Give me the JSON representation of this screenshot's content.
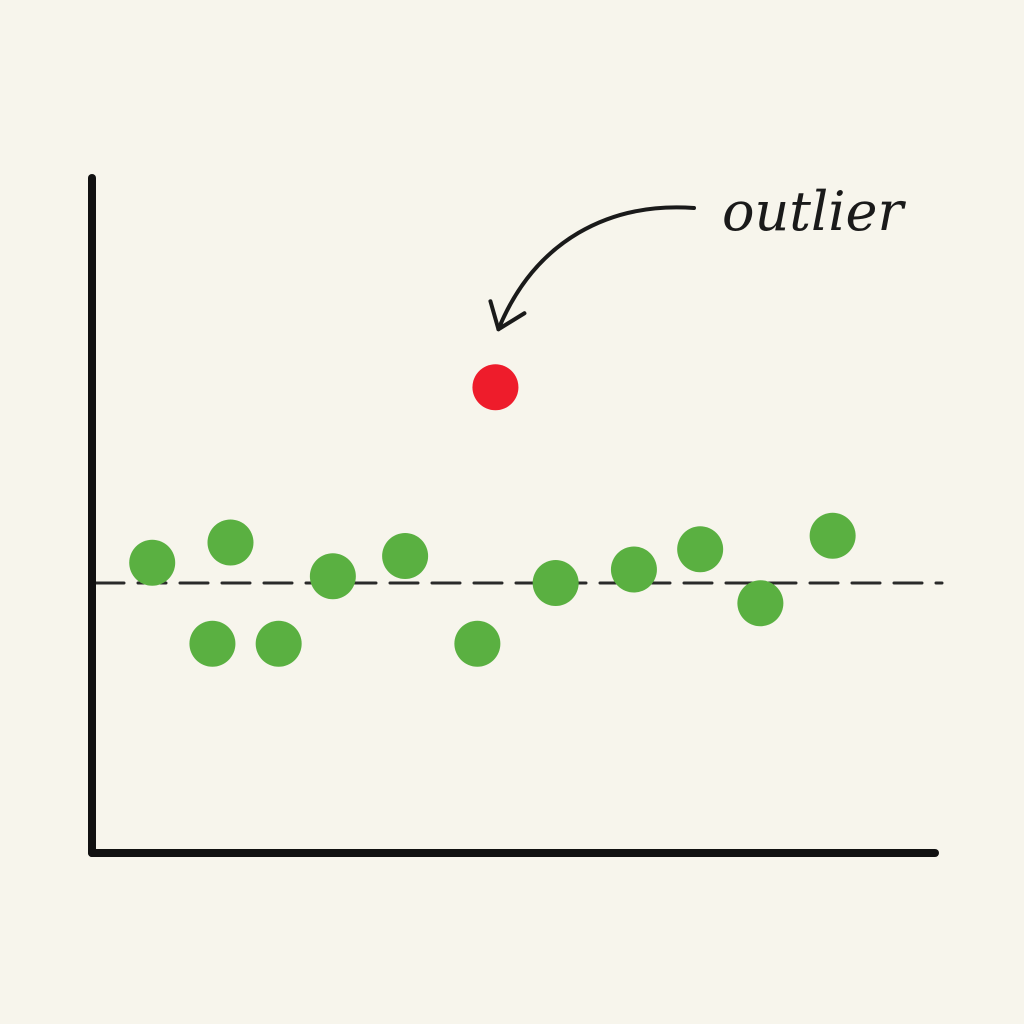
{
  "chart_data": {
    "type": "scatter",
    "title": "",
    "xlabel": "",
    "ylabel": "",
    "xlim": [
      0,
      14
    ],
    "ylim": [
      0,
      10
    ],
    "grid": false,
    "reference_line": {
      "y": 4,
      "style": "dashed"
    },
    "series": [
      {
        "role": "normal",
        "color": "#5ab041",
        "points": [
          {
            "x": 1.0,
            "y": 4.3
          },
          {
            "x": 2.0,
            "y": 3.1
          },
          {
            "x": 2.3,
            "y": 4.6
          },
          {
            "x": 3.1,
            "y": 3.1
          },
          {
            "x": 4.0,
            "y": 4.1
          },
          {
            "x": 5.2,
            "y": 4.4
          },
          {
            "x": 6.4,
            "y": 3.1
          },
          {
            "x": 7.7,
            "y": 4.0
          },
          {
            "x": 9.0,
            "y": 4.2
          },
          {
            "x": 10.1,
            "y": 4.5
          },
          {
            "x": 11.1,
            "y": 3.7
          },
          {
            "x": 12.3,
            "y": 4.7
          }
        ]
      },
      {
        "role": "outlier",
        "color": "#ee1c2b",
        "points": [
          {
            "x": 6.7,
            "y": 6.9
          }
        ]
      }
    ],
    "annotations": [
      {
        "text": "outlier",
        "target_series": "outlier",
        "arrow": true
      }
    ],
    "colors": {
      "axis": "#111111",
      "reference_line": "#2a2a2a",
      "background": "#f7f5ec"
    }
  }
}
